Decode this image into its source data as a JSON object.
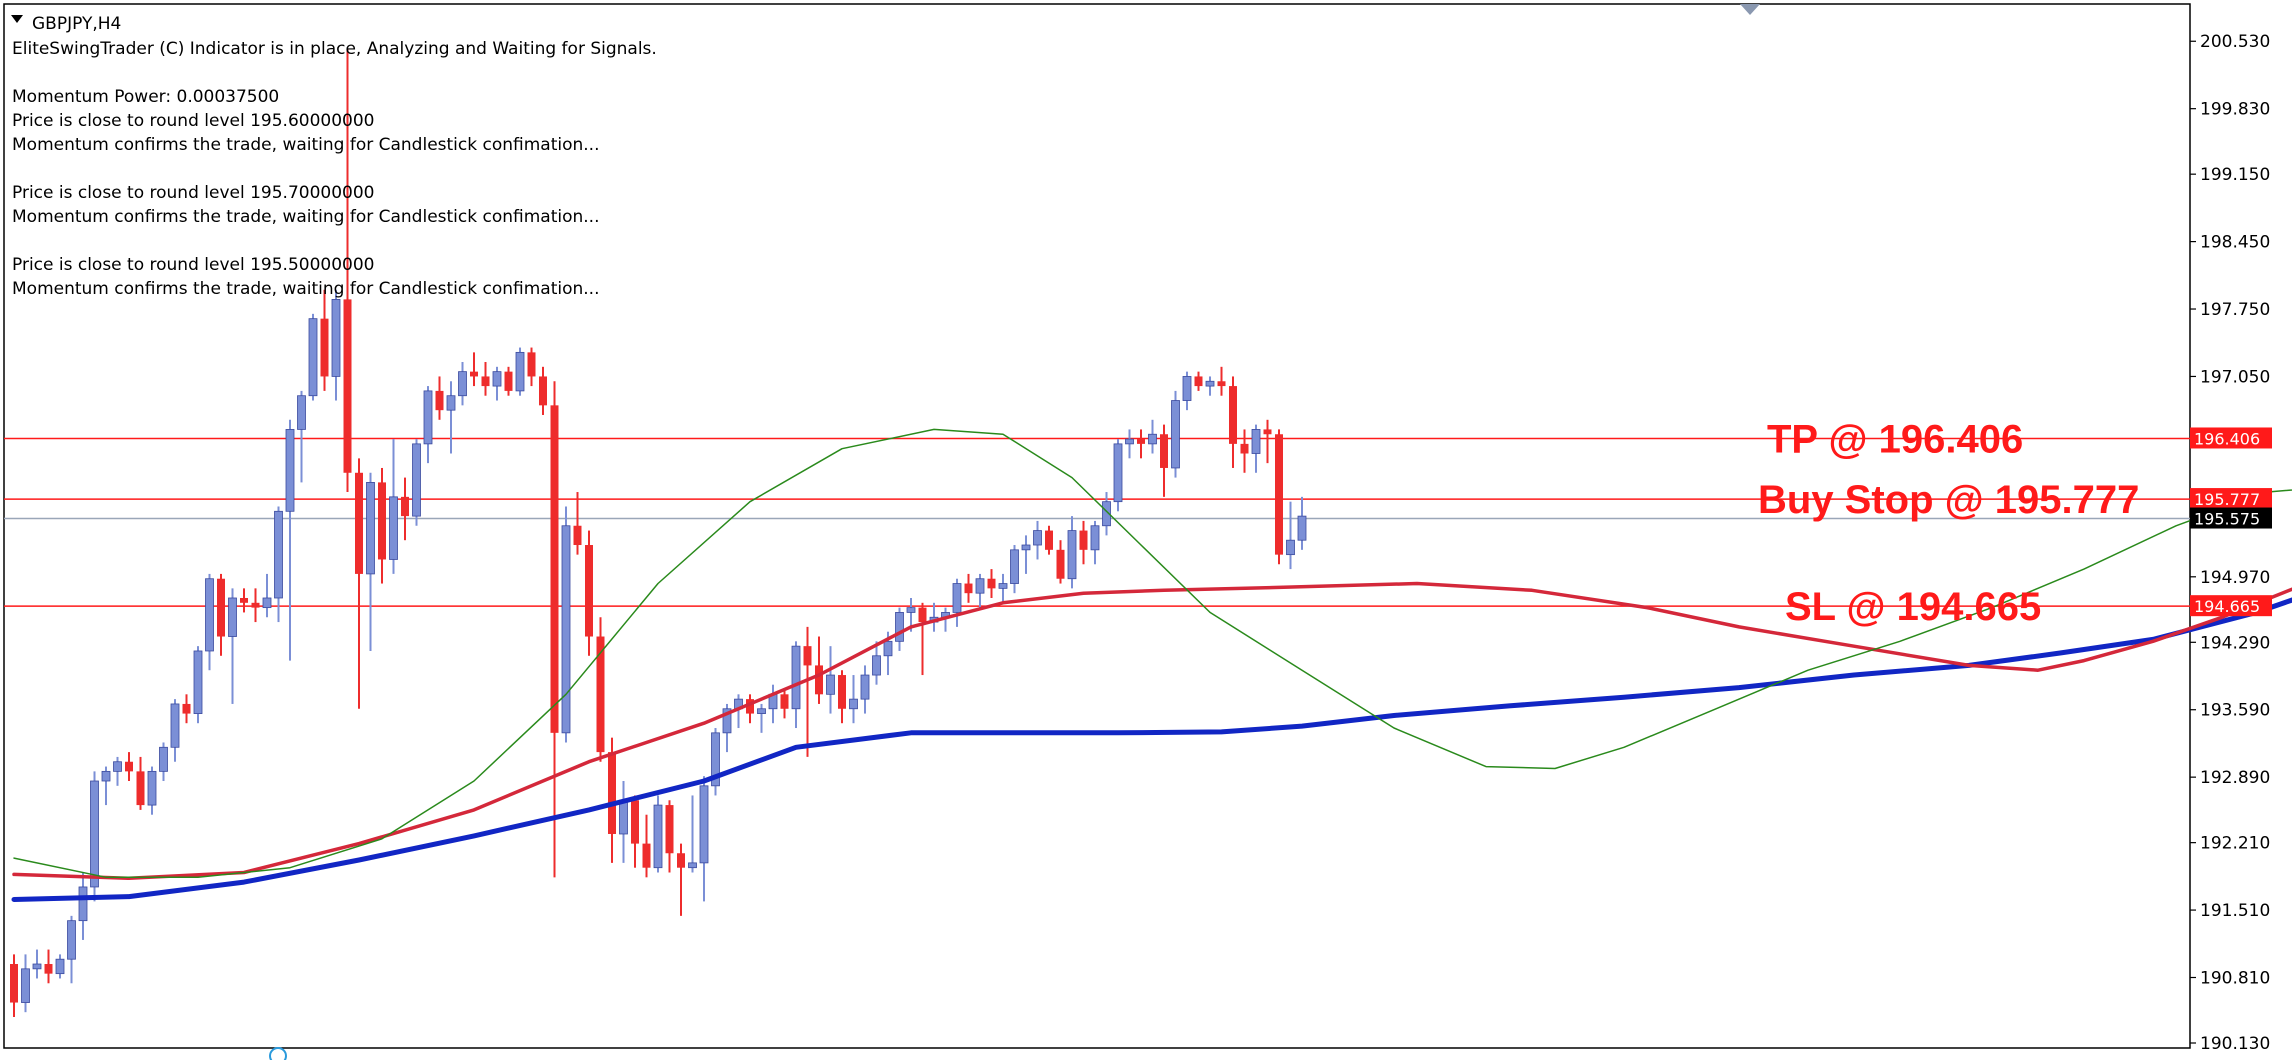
{
  "header": {
    "symbol_label": "GBPJPY,H4",
    "lines": [
      "EliteSwingTrader (C) Indicator is in place, Analyzing and Waiting for Signals.",
      "",
      "Momentum Power: 0.00037500",
      "Price is close to round level 195.60000000",
      "Momentum confirms the trade, waiting for Candlestick confimation...",
      "",
      "Price is close to round level 195.70000000",
      "Momentum confirms the trade, waiting for Candlestick confimation...",
      "",
      "Price is close to round level 195.50000000",
      "Momentum confirms the trade, waiting for Candlestick confimation..."
    ]
  },
  "colors": {
    "bull": "#7b8fd6",
    "bear": "#ee2c2c",
    "ma_slow": "#1126c4",
    "ma_mid": "#d4283a",
    "ma_fast": "#2a8a1c",
    "level_line": "#ff1a1a",
    "current_line": "#9aa6b8",
    "text": "#000000"
  },
  "chart_data": {
    "type": "candlestick",
    "symbol": "GBPJPY",
    "timeframe": "H4",
    "ylim": [
      190.13,
      200.87
    ],
    "yticks": [
      "200.530",
      "199.830",
      "199.150",
      "198.450",
      "197.750",
      "197.050",
      "196.370",
      "195.670",
      "194.970",
      "194.290",
      "193.590",
      "192.890",
      "192.210",
      "191.510",
      "190.810",
      "190.130"
    ],
    "candles": [
      [
        190.95,
        191.05,
        190.4,
        190.55
      ],
      [
        190.55,
        191.05,
        190.45,
        190.9
      ],
      [
        190.9,
        191.1,
        190.8,
        190.95
      ],
      [
        190.95,
        191.1,
        190.75,
        190.85
      ],
      [
        190.85,
        191.05,
        190.8,
        191.0
      ],
      [
        191.0,
        191.45,
        190.75,
        191.4
      ],
      [
        191.4,
        191.9,
        191.2,
        191.75
      ],
      [
        191.75,
        192.95,
        191.6,
        192.85
      ],
      [
        192.85,
        193.0,
        192.6,
        192.95
      ],
      [
        192.95,
        193.1,
        192.8,
        193.05
      ],
      [
        193.05,
        193.15,
        192.85,
        192.95
      ],
      [
        192.95,
        193.1,
        192.55,
        192.6
      ],
      [
        192.6,
        193.0,
        192.5,
        192.95
      ],
      [
        192.95,
        193.25,
        192.85,
        193.2
      ],
      [
        193.2,
        193.7,
        193.05,
        193.65
      ],
      [
        193.65,
        193.75,
        193.45,
        193.55
      ],
      [
        193.55,
        194.25,
        193.45,
        194.2
      ],
      [
        194.2,
        195.0,
        194.0,
        194.95
      ],
      [
        194.95,
        195.0,
        194.15,
        194.35
      ],
      [
        194.35,
        194.85,
        193.65,
        194.75
      ],
      [
        194.75,
        194.85,
        194.6,
        194.7
      ],
      [
        194.7,
        194.85,
        194.5,
        194.65
      ],
      [
        194.65,
        195.0,
        194.55,
        194.75
      ],
      [
        194.75,
        195.7,
        194.5,
        195.65
      ],
      [
        195.65,
        196.6,
        194.1,
        196.5
      ],
      [
        196.5,
        196.9,
        195.95,
        196.85
      ],
      [
        196.85,
        197.7,
        196.8,
        197.65
      ],
      [
        197.65,
        197.95,
        196.9,
        197.05
      ],
      [
        197.05,
        197.95,
        196.8,
        197.85
      ],
      [
        197.85,
        200.45,
        195.85,
        196.05
      ],
      [
        196.05,
        196.2,
        193.6,
        195.0
      ],
      [
        195.0,
        196.05,
        194.2,
        195.95
      ],
      [
        195.95,
        196.1,
        194.9,
        195.15
      ],
      [
        195.15,
        196.4,
        195.0,
        195.8
      ],
      [
        195.8,
        196.0,
        195.35,
        195.6
      ],
      [
        195.6,
        196.4,
        195.5,
        196.35
      ],
      [
        196.35,
        196.95,
        196.15,
        196.9
      ],
      [
        196.9,
        197.05,
        196.6,
        196.7
      ],
      [
        196.7,
        197.0,
        196.25,
        196.85
      ],
      [
        196.85,
        197.2,
        196.75,
        197.1
      ],
      [
        197.1,
        197.3,
        196.95,
        197.05
      ],
      [
        197.05,
        197.2,
        196.85,
        196.95
      ],
      [
        196.95,
        197.15,
        196.8,
        197.1
      ],
      [
        197.1,
        197.15,
        196.85,
        196.9
      ],
      [
        196.9,
        197.35,
        196.85,
        197.3
      ],
      [
        197.3,
        197.35,
        196.95,
        197.05
      ],
      [
        197.05,
        197.15,
        196.65,
        196.75
      ],
      [
        196.75,
        197.0,
        191.85,
        193.35
      ],
      [
        193.35,
        195.7,
        193.25,
        195.5
      ],
      [
        195.5,
        195.85,
        195.2,
        195.3
      ],
      [
        195.3,
        195.45,
        194.15,
        194.35
      ],
      [
        194.35,
        194.55,
        193.05,
        193.15
      ],
      [
        193.15,
        193.3,
        192.0,
        192.3
      ],
      [
        192.3,
        192.85,
        192.0,
        192.65
      ],
      [
        192.65,
        192.7,
        191.95,
        192.2
      ],
      [
        192.2,
        192.5,
        191.85,
        191.95
      ],
      [
        191.95,
        192.7,
        191.9,
        192.6
      ],
      [
        192.6,
        192.65,
        191.9,
        192.1
      ],
      [
        192.1,
        192.2,
        191.45,
        191.95
      ],
      [
        191.95,
        192.7,
        191.9,
        192.0
      ],
      [
        192.0,
        192.9,
        191.6,
        192.8
      ],
      [
        192.8,
        193.4,
        192.7,
        193.35
      ],
      [
        193.35,
        193.65,
        193.15,
        193.6
      ],
      [
        193.6,
        193.75,
        193.4,
        193.7
      ],
      [
        193.7,
        193.75,
        193.45,
        193.55
      ],
      [
        193.55,
        193.65,
        193.35,
        193.6
      ],
      [
        193.6,
        193.85,
        193.45,
        193.75
      ],
      [
        193.75,
        193.8,
        193.5,
        193.6
      ],
      [
        193.6,
        194.3,
        193.4,
        194.25
      ],
      [
        194.25,
        194.45,
        193.1,
        194.05
      ],
      [
        194.05,
        194.35,
        193.65,
        193.75
      ],
      [
        193.75,
        194.25,
        193.55,
        193.95
      ],
      [
        193.95,
        194.0,
        193.45,
        193.6
      ],
      [
        193.6,
        193.95,
        193.45,
        193.7
      ],
      [
        193.7,
        194.05,
        193.55,
        193.95
      ],
      [
        193.95,
        194.3,
        193.85,
        194.15
      ],
      [
        194.15,
        194.4,
        193.95,
        194.3
      ],
      [
        194.3,
        194.65,
        194.2,
        194.6
      ],
      [
        194.6,
        194.75,
        194.4,
        194.65
      ],
      [
        194.65,
        194.7,
        193.95,
        194.5
      ],
      [
        194.5,
        194.7,
        194.4,
        194.55
      ],
      [
        194.55,
        194.65,
        194.4,
        194.6
      ],
      [
        194.6,
        194.95,
        194.45,
        194.9
      ],
      [
        194.9,
        195.0,
        194.7,
        194.8
      ],
      [
        194.8,
        195.0,
        194.65,
        194.95
      ],
      [
        194.95,
        195.05,
        194.75,
        194.85
      ],
      [
        194.85,
        195.0,
        194.7,
        194.9
      ],
      [
        194.9,
        195.3,
        194.8,
        195.25
      ],
      [
        195.25,
        195.4,
        195.0,
        195.3
      ],
      [
        195.3,
        195.55,
        195.15,
        195.45
      ],
      [
        195.45,
        195.5,
        195.2,
        195.25
      ],
      [
        195.25,
        195.35,
        194.9,
        194.95
      ],
      [
        194.95,
        195.6,
        194.85,
        195.45
      ],
      [
        195.45,
        195.55,
        195.1,
        195.25
      ],
      [
        195.25,
        195.55,
        195.1,
        195.5
      ],
      [
        195.5,
        195.85,
        195.4,
        195.75
      ],
      [
        195.75,
        196.4,
        195.65,
        196.35
      ],
      [
        196.35,
        196.5,
        196.2,
        196.4
      ],
      [
        196.4,
        196.5,
        196.2,
        196.35
      ],
      [
        196.35,
        196.6,
        196.25,
        196.45
      ],
      [
        196.45,
        196.55,
        195.8,
        196.1
      ],
      [
        196.1,
        196.9,
        196.0,
        196.8
      ],
      [
        196.8,
        197.1,
        196.7,
        197.05
      ],
      [
        197.05,
        197.1,
        196.9,
        196.95
      ],
      [
        196.95,
        197.05,
        196.85,
        197.0
      ],
      [
        197.0,
        197.15,
        196.85,
        196.95
      ],
      [
        196.95,
        197.05,
        196.1,
        196.35
      ],
      [
        196.35,
        196.5,
        196.05,
        196.25
      ],
      [
        196.25,
        196.55,
        196.05,
        196.5
      ],
      [
        196.5,
        196.6,
        196.15,
        196.45
      ],
      [
        196.45,
        196.5,
        195.1,
        195.2
      ],
      [
        195.2,
        195.75,
        195.05,
        195.35
      ],
      [
        195.35,
        195.8,
        195.25,
        195.6
      ]
    ],
    "series": [
      {
        "name": "",
        "color": "#1126c4",
        "values": [
          [
            0,
            191.62
          ],
          [
            10,
            191.65
          ],
          [
            20,
            191.8
          ],
          [
            30,
            192.03
          ],
          [
            40,
            192.28
          ],
          [
            50,
            192.55
          ],
          [
            60,
            192.85
          ],
          [
            68,
            193.2
          ],
          [
            78,
            193.35
          ],
          [
            86,
            193.35
          ],
          [
            96,
            193.35
          ],
          [
            105,
            193.36
          ],
          [
            112,
            193.42
          ],
          [
            120,
            193.53
          ],
          [
            130,
            193.63
          ],
          [
            140,
            193.72
          ],
          [
            150,
            193.82
          ],
          [
            160,
            193.95
          ],
          [
            170,
            194.05
          ],
          [
            178,
            194.18
          ],
          [
            186,
            194.32
          ],
          [
            195,
            194.6
          ],
          [
            201,
            194.85
          ]
        ]
      },
      {
        "name": "",
        "color": "#d4283a",
        "values": [
          [
            0,
            191.88
          ],
          [
            10,
            191.84
          ],
          [
            20,
            191.9
          ],
          [
            30,
            192.2
          ],
          [
            40,
            192.55
          ],
          [
            50,
            193.05
          ],
          [
            60,
            193.45
          ],
          [
            70,
            193.95
          ],
          [
            78,
            194.45
          ],
          [
            86,
            194.7
          ],
          [
            93,
            194.8
          ],
          [
            100,
            194.83
          ],
          [
            110,
            194.86
          ],
          [
            122,
            194.9
          ],
          [
            132,
            194.83
          ],
          [
            142,
            194.65
          ],
          [
            150,
            194.45
          ],
          [
            160,
            194.25
          ],
          [
            170,
            194.05
          ],
          [
            176,
            194.0
          ],
          [
            180,
            194.1
          ],
          [
            186,
            194.3
          ],
          [
            192,
            194.55
          ],
          [
            201,
            194.98
          ]
        ]
      },
      {
        "name": "",
        "color": "#2a8a1c",
        "values": [
          [
            0,
            192.05
          ],
          [
            8,
            191.85
          ],
          [
            16,
            191.85
          ],
          [
            24,
            191.95
          ],
          [
            32,
            192.25
          ],
          [
            40,
            192.85
          ],
          [
            48,
            193.75
          ],
          [
            56,
            194.9
          ],
          [
            64,
            195.75
          ],
          [
            72,
            196.3
          ],
          [
            80,
            196.5
          ],
          [
            86,
            196.45
          ],
          [
            92,
            196.0
          ],
          [
            98,
            195.3
          ],
          [
            104,
            194.6
          ],
          [
            112,
            194.0
          ],
          [
            120,
            193.4
          ],
          [
            128,
            193.0
          ],
          [
            134,
            192.98
          ],
          [
            140,
            193.2
          ],
          [
            148,
            193.6
          ],
          [
            156,
            194.0
          ],
          [
            164,
            194.3
          ],
          [
            172,
            194.65
          ],
          [
            180,
            195.05
          ],
          [
            188,
            195.5
          ],
          [
            196,
            195.85
          ],
          [
            201,
            195.9
          ]
        ]
      }
    ],
    "levels": [
      {
        "key": "tp",
        "price": 196.406,
        "tag": "196.406",
        "label": "TP @ 196.406",
        "color": "#ff1a1a"
      },
      {
        "key": "buy_stop",
        "price": 195.777,
        "tag": "195.777",
        "label": "Buy Stop @ 195.777",
        "color": "#ff1a1a"
      },
      {
        "key": "sl",
        "price": 194.665,
        "tag": "194.665",
        "label": "SL @ 194.665",
        "color": "#ff1a1a"
      }
    ],
    "current_price": {
      "price": 195.575,
      "tag": "195.575"
    }
  }
}
